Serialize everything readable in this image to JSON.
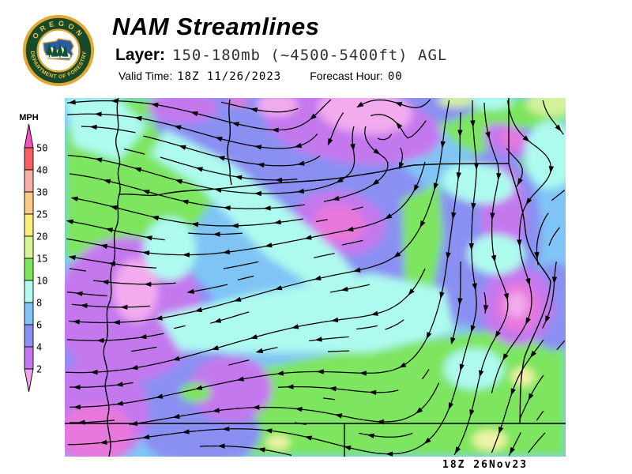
{
  "header": {
    "title": "NAM Streamlines",
    "layer_label": "Layer:",
    "layer_value": "150-180mb (~4500-5400ft) AGL",
    "valid_time_label": "Valid Time:",
    "valid_time_value": "18Z 11/26/2023",
    "forecast_hour_label": "Forecast Hour:",
    "forecast_hour_value": "00"
  },
  "logo": {
    "ring_top": "OREGON",
    "ring_bottom": "DEPARTMENT OF FORESTRY",
    "ring_color": "#17492b",
    "gold_color": "#e3a82d"
  },
  "legend": {
    "units_label": "MPH",
    "above_color": "#f84fbe",
    "stops": [
      {
        "label": "50",
        "color": "#f6605f"
      },
      {
        "label": "40",
        "color": "#f8afa5"
      },
      {
        "label": "30",
        "color": "#facd86"
      },
      {
        "label": "25",
        "color": "#fbec7c"
      },
      {
        "label": "20",
        "color": "#d8f596"
      },
      {
        "label": "15",
        "color": "#7ee55e"
      },
      {
        "label": "10",
        "color": "#b2faee"
      },
      {
        "label": "8",
        "color": "#7fc4f4"
      },
      {
        "label": "6",
        "color": "#8a8ff2"
      },
      {
        "label": "4",
        "color": "#c478ee"
      },
      {
        "label": "2",
        "color": "#f2a7ec"
      }
    ]
  },
  "map": {
    "timestamp": "18Z 26Nov23",
    "line_color": "#000000",
    "palette": {
      "sky": "#7fc4f4",
      "green": "#7de55f",
      "pale_green": "#d2f29b",
      "pale_yellow": "#eef2a6",
      "cyan": "#aefaef",
      "periwinkle": "#8a8ff2",
      "violet": "#c478ee",
      "magenta": "#e878dc",
      "pink": "#f2abee"
    }
  }
}
